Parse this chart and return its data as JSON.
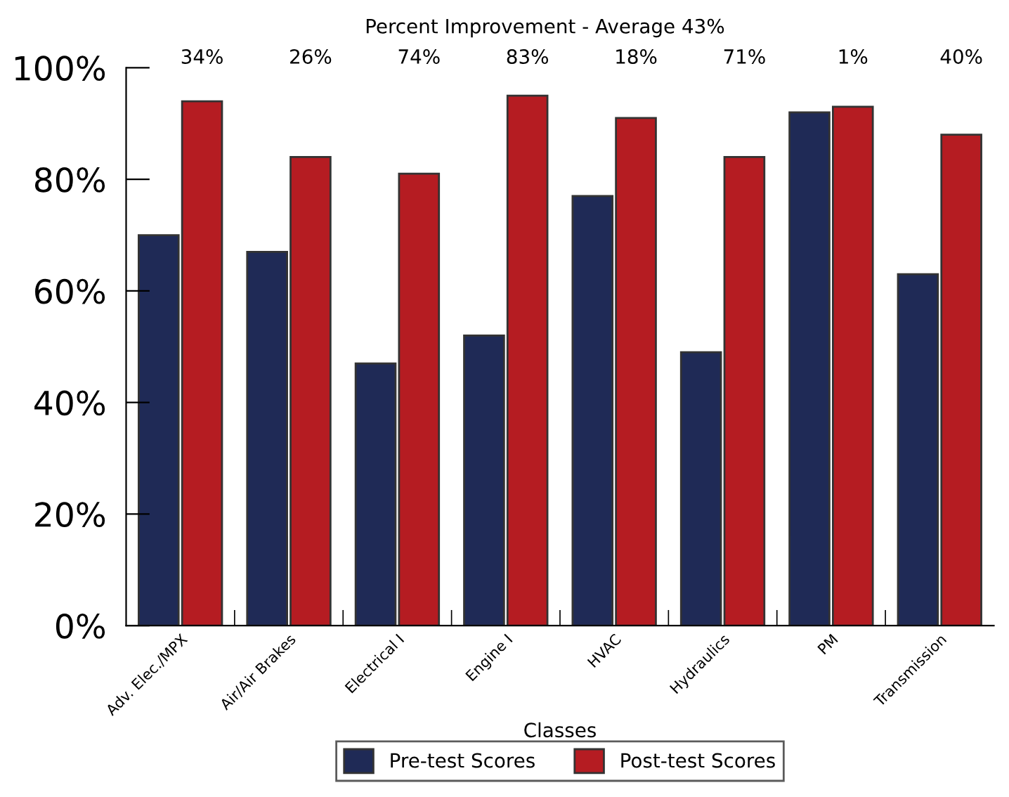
{
  "chart_data": {
    "type": "bar",
    "subtitle": "Percent Improvement - Average 43%",
    "xlabel": "Classes",
    "categories": [
      "Adv. Elec./MPX",
      "Air/Air Brakes",
      "Electrical I",
      "Engine I",
      "HVAC",
      "Hydraulics",
      "PM",
      "Transmission"
    ],
    "series": [
      {
        "name": "Pre-test Scores",
        "color": "#1f2a56",
        "values": [
          70,
          67,
          47,
          52,
          77,
          49,
          92,
          63
        ]
      },
      {
        "name": "Post-test Scores",
        "color": "#b51c22",
        "values": [
          94,
          84,
          81,
          95,
          91,
          84,
          93,
          88
        ]
      }
    ],
    "annotations": [
      "34%",
      "26%",
      "74%",
      "83%",
      "18%",
      "71%",
      "1%",
      "40%"
    ],
    "ylim": [
      0,
      100
    ],
    "yticks": [
      {
        "value": 0,
        "label": "0%"
      },
      {
        "value": 20,
        "label": "20%"
      },
      {
        "value": 40,
        "label": "40%"
      },
      {
        "value": 60,
        "label": "60%"
      },
      {
        "value": 80,
        "label": "80%"
      },
      {
        "value": 100,
        "label": "100%"
      }
    ],
    "grid": false,
    "legend": "bottom"
  }
}
